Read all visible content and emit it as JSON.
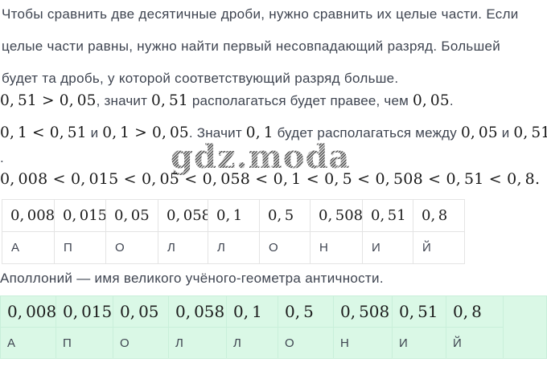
{
  "explanation": {
    "lines": [
      "Чтобы сравнить две десятичные дроби, нужно сравнить их целые части. Если",
      "целые части равны, нужно найти первый несовпадающий разряд. Большей",
      "будет та дробь, у которой соответствующий разряд больше."
    ]
  },
  "statements": [
    {
      "segments": [
        {
          "text": "0,51 > 0,05",
          "math": true
        },
        {
          "text": ", значит ",
          "math": false
        },
        {
          "text": "0,51",
          "math": true
        },
        {
          "text": " располагаться будет правее, чем ",
          "math": false
        },
        {
          "text": "0,05",
          "math": true
        },
        {
          "text": ".",
          "math": false
        }
      ]
    },
    {
      "segments": [
        {
          "text": "0,1 < 0,51",
          "math": true
        },
        {
          "text": " и ",
          "math": false
        },
        {
          "text": "0,1 > 0,05",
          "math": true
        },
        {
          "text": ". Значит ",
          "math": false
        },
        {
          "text": "0,1",
          "math": true
        },
        {
          "text": " будет располагаться между ",
          "math": false
        },
        {
          "text": "0,05",
          "math": true
        },
        {
          "text": " и ",
          "math": false
        },
        {
          "text": "0,51",
          "math": true
        }
      ]
    },
    {
      "segments": [
        {
          "text": ".",
          "math": false
        }
      ]
    }
  ],
  "watermark": {
    "text": "gdz.moda"
  },
  "inequality": "0,008 < 0,015 < 0,05 < 0,058 < 0,1 < 0,5 < 0,508 < 0,51 < 0,8.",
  "note": "Аполлоний — имя великого учёного-геометра античности.",
  "answer_table": {
    "values": [
      "0,008",
      "0,015",
      "0,05",
      "0,058",
      "0,1",
      "0,5",
      "0,508",
      "0,51",
      "0,8"
    ],
    "letters": [
      "А",
      "П",
      "О",
      "Л",
      "Л",
      "О",
      "Н",
      "И",
      "Й"
    ],
    "word": "АПОЛЛОНИЙ"
  },
  "colors": {
    "text": "#3e4450",
    "math_text": "#1a1a1a",
    "table_border": "#e4e4e4",
    "green_background": "#daf8e6",
    "green_border": "#c9efda",
    "watermark_gray": "#6e6e6e"
  }
}
